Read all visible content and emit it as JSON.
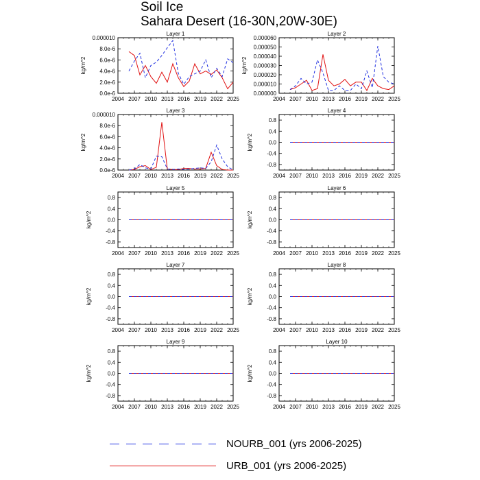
{
  "title": "Soil Ice",
  "subtitle": "Sahara Desert (16-30N,20W-30E)",
  "colors": {
    "NOURB": "#1f2fe0",
    "URB": "#e01010"
  },
  "legend": [
    {
      "key": "NOURB",
      "label": "NOURB_001 (yrs 2006-2025)",
      "style": "dashed"
    },
    {
      "key": "URB",
      "label": "URB_001 (yrs 2006-2025)",
      "style": "solid"
    }
  ],
  "chart_data": [
    {
      "type": "line",
      "title": "Layer 1",
      "ylabel": "kg/m^2",
      "xlim": [
        2004,
        2025
      ],
      "ylim": [
        0,
        1e-05
      ],
      "xticks": [
        "2004",
        "2007",
        "2010",
        "2013",
        "2016",
        "2019",
        "2022",
        "2025"
      ],
      "yticks": [
        0,
        2e-06,
        4e-06,
        6e-06,
        8e-06,
        1e-05
      ],
      "yticklabels": [
        "0.0e-6",
        "2.0e-6",
        "4.0e-6",
        "6.0e-6",
        "8.0e-6",
        "0.000010"
      ],
      "x": [
        2006,
        2007,
        2008,
        2009,
        2010,
        2011,
        2012,
        2013,
        2014,
        2015,
        2016,
        2017,
        2018,
        2019,
        2020,
        2021,
        2022,
        2023,
        2024,
        2025
      ],
      "series": [
        {
          "name": "NOURB_001",
          "values": [
            4e-06,
            5.8e-06,
            7.2e-06,
            2.8e-06,
            5e-06,
            5.6e-06,
            6.8e-06,
            8.2e-06,
            9.5e-06,
            3.6e-06,
            1.6e-06,
            3e-06,
            3.5e-06,
            4e-06,
            6e-06,
            2.8e-06,
            4.5e-06,
            3e-06,
            6.2e-06,
            5.5e-06
          ]
        },
        {
          "name": "URB_001",
          "values": [
            7.5e-06,
            6.8e-06,
            3.3e-06,
            5e-06,
            3e-06,
            1.8e-06,
            3.8e-06,
            2e-06,
            5.3e-06,
            2.8e-06,
            1.2e-06,
            2.2e-06,
            5.3e-06,
            3.5e-06,
            4e-06,
            3.4e-06,
            4.2e-06,
            2.8e-06,
            8e-07,
            2e-06
          ]
        }
      ]
    },
    {
      "type": "line",
      "title": "Layer 2",
      "ylabel": "kg/m^2",
      "xlim": [
        2004,
        2025
      ],
      "ylim": [
        0,
        6e-05
      ],
      "xticks": [
        "2004",
        "2007",
        "2010",
        "2013",
        "2016",
        "2019",
        "2022",
        "2025"
      ],
      "yticks": [
        0,
        1e-05,
        2e-05,
        3e-05,
        4e-05,
        5e-05,
        6e-05
      ],
      "yticklabels": [
        "0.000000",
        "0.000010",
        "0.000020",
        "0.000030",
        "0.000040",
        "0.000050",
        "0.000060"
      ],
      "x": [
        2006,
        2007,
        2008,
        2009,
        2010,
        2011,
        2012,
        2013,
        2014,
        2015,
        2016,
        2017,
        2018,
        2019,
        2020,
        2021,
        2022,
        2023,
        2024,
        2025
      ],
      "series": [
        {
          "name": "NOURB_001",
          "values": [
            4e-06,
            8e-06,
            1.6e-05,
            1e-05,
            1.2e-05,
            3.6e-05,
            2.2e-05,
            3e-06,
            3e-06,
            8e-06,
            3e-06,
            3e-06,
            1e-05,
            5e-06,
            2.4e-05,
            6e-06,
            5.1e-05,
            1.8e-05,
            1.2e-05,
            1e-05
          ]
        },
        {
          "name": "URB_001",
          "values": [
            4e-06,
            6e-06,
            1e-05,
            1.4e-05,
            3e-06,
            5e-06,
            4.2e-05,
            1.4e-05,
            8e-06,
            1e-05,
            1.5e-05,
            8e-06,
            1.2e-05,
            1.2e-05,
            3e-06,
            1.6e-05,
            8e-06,
            5e-06,
            4e-06,
            8e-06
          ]
        }
      ]
    },
    {
      "type": "line",
      "title": "Layer 3",
      "ylabel": "kg/m^2",
      "xlim": [
        2004,
        2025
      ],
      "ylim": [
        0,
        1e-05
      ],
      "xticks": [
        "2004",
        "2007",
        "2010",
        "2013",
        "2016",
        "2019",
        "2022",
        "2025"
      ],
      "yticks": [
        0,
        2e-06,
        4e-06,
        6e-06,
        8e-06,
        1e-05
      ],
      "yticklabels": [
        "0.0e-6",
        "2.0e-6",
        "4.0e-6",
        "6.0e-6",
        "8.0e-6",
        "0.000010"
      ],
      "x": [
        2006,
        2007,
        2008,
        2009,
        2010,
        2011,
        2012,
        2013,
        2014,
        2015,
        2016,
        2017,
        2018,
        2019,
        2020,
        2021,
        2022,
        2023,
        2024,
        2025
      ],
      "series": [
        {
          "name": "NOURB_001",
          "values": [
            0,
            2e-07,
            1e-06,
            4e-07,
            2e-07,
            2.5e-06,
            2.4e-06,
            2e-07,
            1e-07,
            2e-07,
            1e-07,
            2e-07,
            3e-07,
            4e-07,
            3e-07,
            1.5e-06,
            4.5e-06,
            2e-06,
            6e-07,
            0
          ]
        },
        {
          "name": "URB_001",
          "values": [
            0,
            1e-07,
            6e-07,
            8e-07,
            1e-07,
            5e-07,
            8.6e-06,
            2e-07,
            1e-07,
            1e-07,
            3e-07,
            3e-07,
            2e-07,
            2e-07,
            3e-07,
            3.2e-06,
            8e-07,
            1e-07,
            0,
            0
          ]
        }
      ]
    },
    {
      "type": "line",
      "title": "Layer 4",
      "ylabel": "kg/m^2",
      "xlim": [
        2004,
        2025
      ],
      "ylim": [
        -1,
        1
      ],
      "xticks": [
        "2004",
        "2007",
        "2010",
        "2013",
        "2016",
        "2019",
        "2022",
        "2025"
      ],
      "yticks": [
        0.8,
        0.4,
        0,
        -0.4,
        -0.8
      ],
      "yticklabels": [
        "0.8",
        "0.4",
        "0.0",
        "-0.4",
        "-0.8"
      ],
      "x": [
        2006,
        2025
      ],
      "series": [
        {
          "name": "NOURB_001",
          "values": [
            0,
            0
          ]
        },
        {
          "name": "URB_001",
          "values": [
            0,
            0
          ]
        }
      ]
    },
    {
      "type": "line",
      "title": "Layer 5",
      "ylabel": "kg/m^2",
      "xlim": [
        2004,
        2025
      ],
      "ylim": [
        -1,
        1
      ],
      "xticks": [
        "2004",
        "2007",
        "2010",
        "2013",
        "2016",
        "2019",
        "2022",
        "2025"
      ],
      "yticks": [
        0.8,
        0.4,
        0,
        -0.4,
        -0.8
      ],
      "yticklabels": [
        "0.8",
        "0.4",
        "0.0",
        "-0.4",
        "-0.8"
      ],
      "x": [
        2006,
        2025
      ],
      "series": [
        {
          "name": "NOURB_001",
          "values": [
            0,
            0
          ]
        },
        {
          "name": "URB_001",
          "values": [
            0,
            0
          ]
        }
      ]
    },
    {
      "type": "line",
      "title": "Layer 6",
      "ylabel": "kg/m^2",
      "xlim": [
        2004,
        2025
      ],
      "ylim": [
        -1,
        1
      ],
      "xticks": [
        "2004",
        "2007",
        "2010",
        "2013",
        "2016",
        "2019",
        "2022",
        "2025"
      ],
      "yticks": [
        0.8,
        0.4,
        0,
        -0.4,
        -0.8
      ],
      "yticklabels": [
        "0.8",
        "0.4",
        "0.0",
        "-0.4",
        "-0.8"
      ],
      "x": [
        2006,
        2025
      ],
      "series": [
        {
          "name": "NOURB_001",
          "values": [
            0,
            0
          ]
        },
        {
          "name": "URB_001",
          "values": [
            0,
            0
          ]
        }
      ]
    },
    {
      "type": "line",
      "title": "Layer 7",
      "ylabel": "kg/m^2",
      "xlim": [
        2004,
        2025
      ],
      "ylim": [
        -1,
        1
      ],
      "xticks": [
        "2004",
        "2007",
        "2010",
        "2013",
        "2016",
        "2019",
        "2022",
        "2025"
      ],
      "yticks": [
        0.8,
        0.4,
        0,
        -0.4,
        -0.8
      ],
      "yticklabels": [
        "0.8",
        "0.4",
        "0.0",
        "-0.4",
        "-0.8"
      ],
      "x": [
        2006,
        2025
      ],
      "series": [
        {
          "name": "NOURB_001",
          "values": [
            0,
            0
          ]
        },
        {
          "name": "URB_001",
          "values": [
            0,
            0
          ]
        }
      ]
    },
    {
      "type": "line",
      "title": "Layer 8",
      "ylabel": "kg/m^2",
      "xlim": [
        2004,
        2025
      ],
      "ylim": [
        -1,
        1
      ],
      "xticks": [
        "2004",
        "2007",
        "2010",
        "2013",
        "2016",
        "2019",
        "2022",
        "2025"
      ],
      "yticks": [
        0.8,
        0.4,
        0,
        -0.4,
        -0.8
      ],
      "yticklabels": [
        "0.8",
        "0.4",
        "0.0",
        "-0.4",
        "-0.8"
      ],
      "x": [
        2006,
        2025
      ],
      "series": [
        {
          "name": "NOURB_001",
          "values": [
            0,
            0
          ]
        },
        {
          "name": "URB_001",
          "values": [
            0,
            0
          ]
        }
      ]
    },
    {
      "type": "line",
      "title": "Layer 9",
      "ylabel": "kg/m^2",
      "xlim": [
        2004,
        2025
      ],
      "ylim": [
        -1,
        1
      ],
      "xticks": [
        "2004",
        "2007",
        "2010",
        "2013",
        "2016",
        "2019",
        "2022",
        "2025"
      ],
      "yticks": [
        0.8,
        0.4,
        0,
        -0.4,
        -0.8
      ],
      "yticklabels": [
        "0.8",
        "0.4",
        "0.0",
        "-0.4",
        "-0.8"
      ],
      "x": [
        2006,
        2025
      ],
      "series": [
        {
          "name": "NOURB_001",
          "values": [
            0,
            0
          ]
        },
        {
          "name": "URB_001",
          "values": [
            0,
            0
          ]
        }
      ]
    },
    {
      "type": "line",
      "title": "Layer 10",
      "ylabel": "kg/m^2",
      "xlim": [
        2004,
        2025
      ],
      "ylim": [
        -1,
        1
      ],
      "xticks": [
        "2004",
        "2007",
        "2010",
        "2013",
        "2016",
        "2019",
        "2022",
        "2025"
      ],
      "yticks": [
        0.8,
        0.4,
        0,
        -0.4,
        -0.8
      ],
      "yticklabels": [
        "0.8",
        "0.4",
        "0.0",
        "-0.4",
        "-0.8"
      ],
      "x": [
        2006,
        2025
      ],
      "series": [
        {
          "name": "NOURB_001",
          "values": [
            0,
            0
          ]
        },
        {
          "name": "URB_001",
          "values": [
            0,
            0
          ]
        }
      ]
    }
  ]
}
